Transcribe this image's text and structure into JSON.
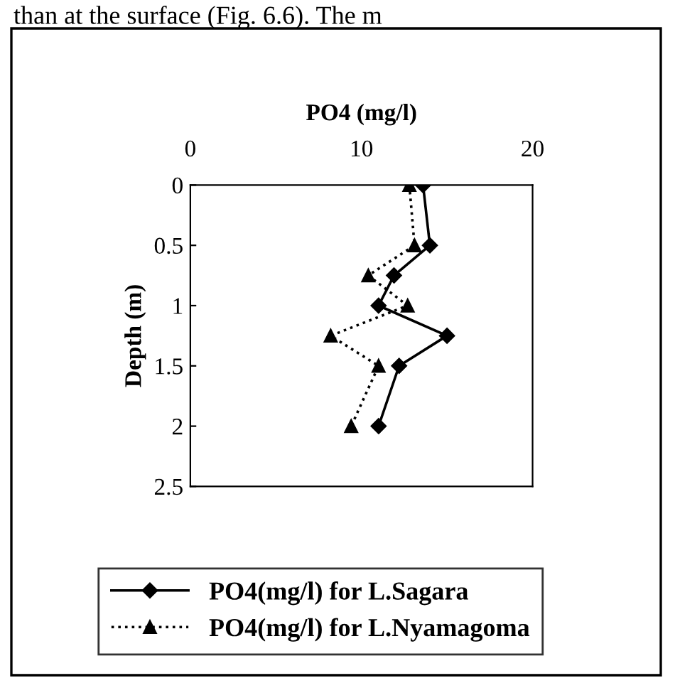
{
  "chart_data": {
    "type": "line",
    "xlabel": "PO4 (mg/l)",
    "ylabel": "Depth (m)",
    "annotations": [
      "than at the surface (Fig. 6.6). The m"
    ],
    "xlim": [
      0,
      20
    ],
    "xticks": [
      0,
      10,
      20
    ],
    "ylim": [
      2.5,
      0
    ],
    "yticks": [
      0,
      0.5,
      1,
      1.5,
      2,
      2.5
    ],
    "grid": false,
    "legend": "bottom",
    "series": [
      {
        "name": "PO4(mg/l) for L.Sagara",
        "color": "#000000",
        "marker": "diamond",
        "line_style": "solid",
        "x": [
          13.6,
          14.0,
          11.9,
          11.0,
          15.0,
          12.2,
          11.0
        ],
        "values": [
          0,
          0.5,
          0.75,
          1.0,
          1.25,
          1.5,
          2.0
        ]
      },
      {
        "name": "PO4(mg/l) for L.Nyamagoma",
        "color": "#000000",
        "marker": "triangle",
        "line_style": "dotted",
        "x": [
          12.8,
          13.1,
          10.4,
          12.7,
          8.2,
          11.0,
          9.4
        ],
        "values": [
          0,
          0.5,
          0.75,
          1.0,
          1.25,
          1.5,
          2.0
        ]
      }
    ]
  }
}
